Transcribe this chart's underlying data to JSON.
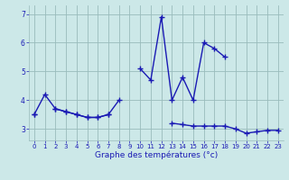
{
  "hours": [
    0,
    1,
    2,
    3,
    4,
    5,
    6,
    7,
    8,
    9,
    10,
    11,
    12,
    13,
    14,
    15,
    16,
    17,
    18,
    19,
    20,
    21,
    22,
    23
  ],
  "series1": [
    3.5,
    4.2,
    3.7,
    3.6,
    3.5,
    3.4,
    3.4,
    3.5,
    4.0,
    null,
    5.1,
    4.7,
    6.9,
    4.0,
    4.8,
    4.0,
    6.0,
    5.8,
    5.5,
    null,
    null,
    null,
    null,
    null
  ],
  "series2": [
    3.5,
    null,
    3.7,
    3.6,
    3.5,
    3.4,
    3.4,
    3.5,
    null,
    null,
    null,
    null,
    null,
    3.2,
    3.15,
    3.1,
    3.1,
    3.1,
    3.1,
    3.0,
    2.85,
    2.9,
    2.95,
    2.95
  ],
  "xlabel": "Graphe des températures (°c)",
  "line_color": "#1a1ab4",
  "bg_color": "#cce8e8",
  "grid_color": "#99bbbb",
  "ylim": [
    2.6,
    7.3
  ],
  "xlim": [
    -0.5,
    23.5
  ],
  "xticks": [
    0,
    1,
    2,
    3,
    4,
    5,
    6,
    7,
    8,
    9,
    10,
    11,
    12,
    13,
    14,
    15,
    16,
    17,
    18,
    19,
    20,
    21,
    22,
    23
  ],
  "yticks": [
    3,
    4,
    5,
    6,
    7
  ],
  "marker": "+",
  "markersize": 4,
  "linewidth": 1.0,
  "tick_fontsize": 5.0,
  "xlabel_fontsize": 6.5
}
